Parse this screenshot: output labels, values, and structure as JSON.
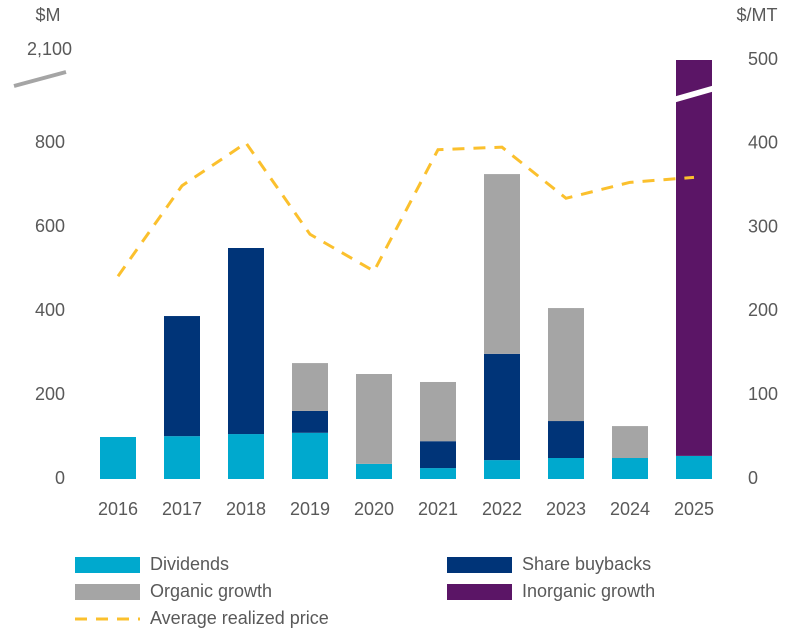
{
  "chart_data": {
    "type": "bar",
    "stacked": true,
    "y_label": "$M",
    "y2_label": "$/MT",
    "axis_break": true,
    "categories": [
      "2016",
      "2017",
      "2018",
      "2019",
      "2020",
      "2021",
      "2022",
      "2023",
      "2024",
      "2025"
    ],
    "series": [
      {
        "name": "Dividends",
        "color": "#00a9ce",
        "values": [
          100,
          102,
          107,
          110,
          36,
          26,
          45,
          50,
          50,
          55
        ]
      },
      {
        "name": "Share buybacks",
        "color": "#003478",
        "values": [
          0,
          286,
          443,
          52,
          0,
          64,
          253,
          88,
          0,
          0
        ]
      },
      {
        "name": "Organic growth",
        "color": "#a5a5a5",
        "values": [
          0,
          0,
          0,
          114,
          214,
          141,
          428,
          269,
          76,
          0
        ]
      },
      {
        "name": "Inorganic growth",
        "color": "#5b1566",
        "values": [
          0,
          0,
          0,
          0,
          0,
          0,
          0,
          0,
          0,
          2045
        ]
      },
      {
        "name": "Average realized price",
        "type": "line",
        "axis": "y2",
        "color": "#fbc02d",
        "dashed": true,
        "values": [
          242,
          350,
          401,
          292,
          248,
          393,
          396,
          335,
          354,
          360
        ]
      }
    ],
    "ylim": [
      0,
      2100
    ],
    "yticks": [
      0,
      200,
      400,
      600,
      800,
      {
        "value": 2100,
        "label": "2,100"
      }
    ],
    "y2lim": [
      0,
      500
    ],
    "y2ticks": [
      0,
      100,
      200,
      300,
      400,
      500
    ],
    "grid": false
  }
}
